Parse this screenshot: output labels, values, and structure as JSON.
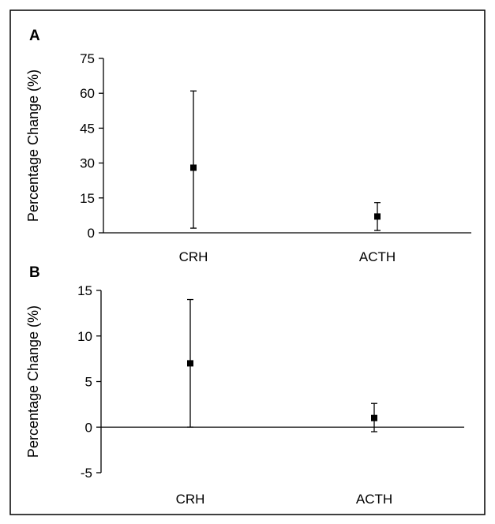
{
  "chart_data": [
    {
      "type": "scatter",
      "panel_label": "A",
      "categories": [
        "CRH",
        "ACTH"
      ],
      "values": [
        28,
        7
      ],
      "error_low": [
        2,
        1
      ],
      "error_high": [
        61,
        13
      ],
      "ylabel": "Percentage Change (%)",
      "ylim": [
        0,
        75
      ],
      "yticks": [
        0,
        15,
        30,
        45,
        60,
        75
      ],
      "grid": false,
      "legend": "none"
    },
    {
      "type": "scatter",
      "panel_label": "B",
      "categories": [
        "CRH",
        "ACTH"
      ],
      "values": [
        7,
        1
      ],
      "error_low": [
        0,
        -0.5
      ],
      "error_high": [
        14,
        2.6
      ],
      "ylabel": "Percentage Change (%)",
      "ylim": [
        -5,
        15
      ],
      "yticks": [
        -5,
        0,
        5,
        10,
        15
      ],
      "grid": false,
      "legend": "none"
    }
  ]
}
